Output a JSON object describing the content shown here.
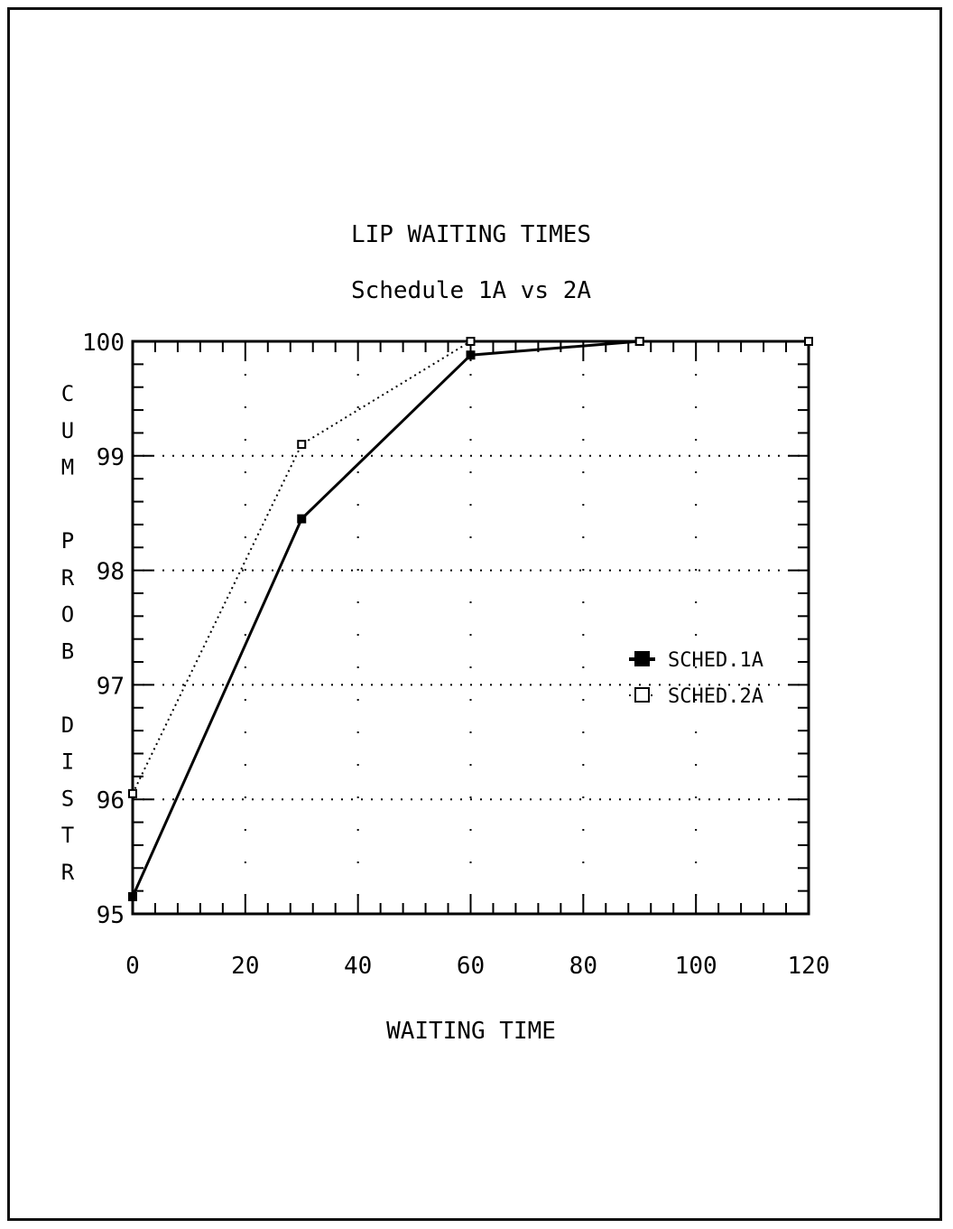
{
  "chart_data": {
    "type": "line",
    "title": "LIP WAITING TIMES",
    "subtitle": "Schedule 1A vs 2A",
    "xlabel": "WAITING TIME",
    "ylabel": "CUM PROB DISTR",
    "xlim": [
      0,
      120
    ],
    "ylim": [
      95,
      100
    ],
    "xticks": [
      "0",
      "20",
      "40",
      "60",
      "80",
      "100",
      "120"
    ],
    "yticks": [
      "95",
      "96",
      "97",
      "98",
      "99",
      "100"
    ],
    "grid": true,
    "legend_position": "right",
    "series": [
      {
        "name": "SCHED.1A",
        "style": "solid",
        "marker": "filled-square",
        "x": [
          0,
          30,
          60,
          90,
          120
        ],
        "y": [
          95.15,
          98.45,
          99.88,
          100,
          100
        ]
      },
      {
        "name": "SCHED.2A",
        "style": "dotted",
        "marker": "open-square",
        "x": [
          0,
          30,
          60,
          90,
          120
        ],
        "y": [
          96.05,
          99.1,
          100,
          100,
          100
        ]
      }
    ]
  }
}
